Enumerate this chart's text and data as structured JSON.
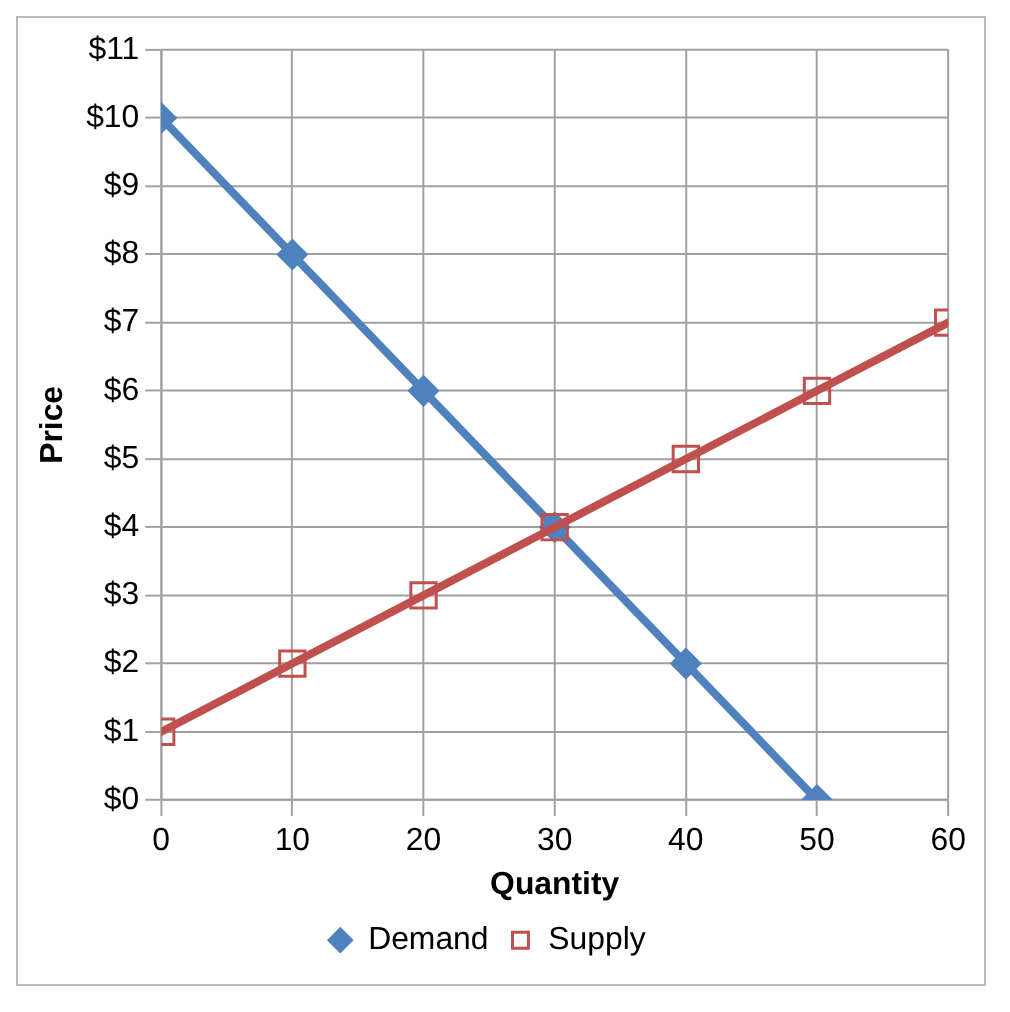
{
  "chart_data": {
    "type": "line",
    "xlabel": "Quantity",
    "ylabel": "Price",
    "xlim": [
      0,
      60
    ],
    "xticks": [
      0,
      10,
      20,
      30,
      40,
      50,
      60
    ],
    "ylim": [
      0,
      11
    ],
    "yticks": [
      {
        "value": 0,
        "label": "$0"
      },
      {
        "value": 1,
        "label": "$1"
      },
      {
        "value": 2,
        "label": "$2"
      },
      {
        "value": 3,
        "label": "$3"
      },
      {
        "value": 4,
        "label": "$4"
      },
      {
        "value": 5,
        "label": "$5"
      },
      {
        "value": 6,
        "label": "$6"
      },
      {
        "value": 7,
        "label": "$7"
      },
      {
        "value": 8,
        "label": "$8"
      },
      {
        "value": 9,
        "label": "$9"
      },
      {
        "value": 10,
        "label": "$10"
      },
      {
        "value": 11,
        "label": "$11"
      }
    ],
    "grid": true,
    "legend": "bottom",
    "series": [
      {
        "name": "Demand",
        "color": "#4f81bd",
        "marker": "diamond",
        "x": [
          0,
          10,
          20,
          30,
          40,
          50
        ],
        "values": [
          10,
          8,
          6,
          4,
          2,
          0
        ]
      },
      {
        "name": "Supply",
        "color": "#c0504d",
        "marker": "square",
        "x": [
          0,
          10,
          20,
          30,
          40,
          50,
          60
        ],
        "values": [
          1,
          2,
          3,
          4,
          5,
          6,
          7
        ]
      }
    ]
  }
}
